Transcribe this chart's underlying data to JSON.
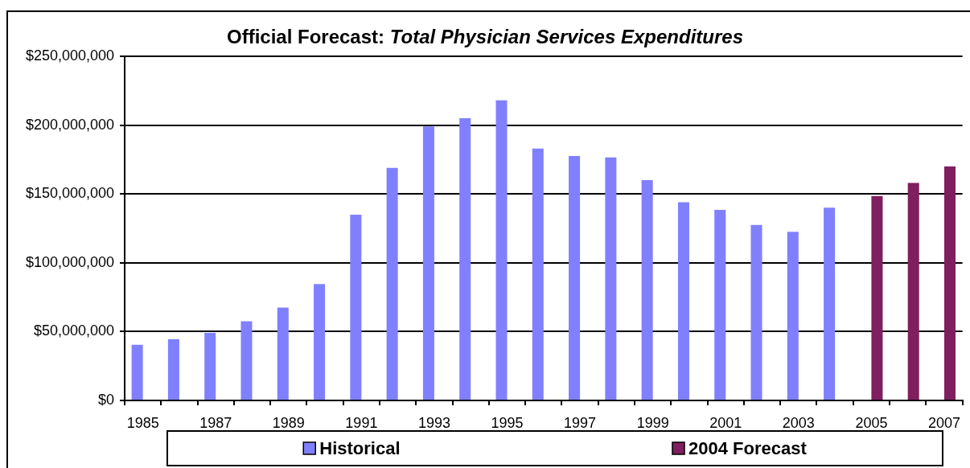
{
  "chart_data": {
    "type": "bar",
    "title": "Official Forecast: Total Physician Services Expenditures",
    "categories": [
      "1985",
      null,
      "1987",
      null,
      "1989",
      null,
      "1991",
      null,
      "1993",
      null,
      "1995",
      null,
      "1997",
      null,
      "1999",
      null,
      "2001",
      null,
      "2003",
      null,
      "2005",
      null,
      "2007"
    ],
    "series": [
      {
        "name": "Historical",
        "color": "#8080ff",
        "values": [
          40500000,
          44500000,
          49000000,
          57500000,
          67500000,
          84500000,
          135000000,
          169000000,
          199000000,
          205000000,
          218000000,
          183000000,
          177500000,
          176500000,
          160000000,
          144000000,
          138500000,
          127500000,
          122500000,
          140000000,
          null,
          null,
          null
        ]
      },
      {
        "name": "2004 Forecast",
        "color": "#7f1f5f",
        "values": [
          null,
          null,
          null,
          null,
          null,
          null,
          null,
          null,
          null,
          null,
          null,
          null,
          null,
          null,
          null,
          null,
          null,
          null,
          null,
          null,
          148500000,
          158000000,
          170000000
        ]
      }
    ],
    "ylim": [
      0,
      250000000
    ],
    "yticks": [
      {
        "value": 0,
        "label": "$0"
      },
      {
        "value": 50000000,
        "label": "$50,000,000"
      },
      {
        "value": 100000000,
        "label": "$100,000,000"
      },
      {
        "value": 150000000,
        "label": "$150,000,000"
      },
      {
        "value": 200000000,
        "label": "$200,000,000"
      },
      {
        "value": 250000000,
        "label": "$250,000,000"
      }
    ],
    "grid": "y",
    "legend": "bottom"
  }
}
